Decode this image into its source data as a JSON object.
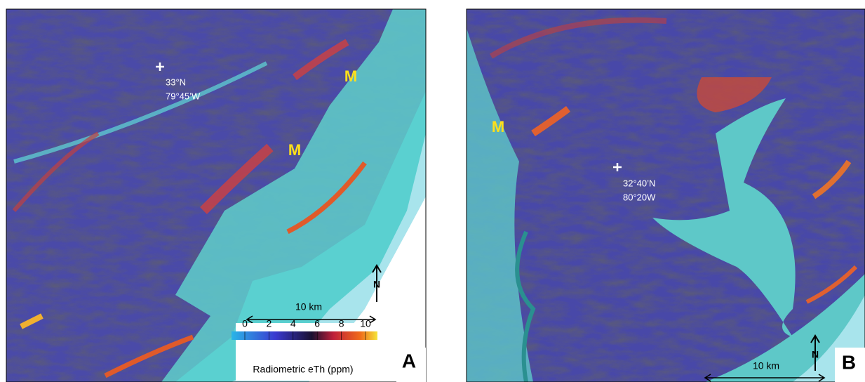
{
  "panels": [
    {
      "label": "A",
      "coord_lat": "33°N",
      "coord_lon": "79°45’W",
      "markers": [
        "M",
        "M"
      ],
      "scale": "10 km",
      "north": "N",
      "colorbar": {
        "ticks": [
          0,
          2,
          4,
          6,
          8,
          10
        ],
        "title": "Radiometric eTh (ppm)"
      }
    },
    {
      "label": "B",
      "coord_lat": "32°40’N",
      "coord_lon": "80°20W",
      "markers": [
        "M"
      ],
      "scale": "10 km",
      "north": "N"
    }
  ]
}
